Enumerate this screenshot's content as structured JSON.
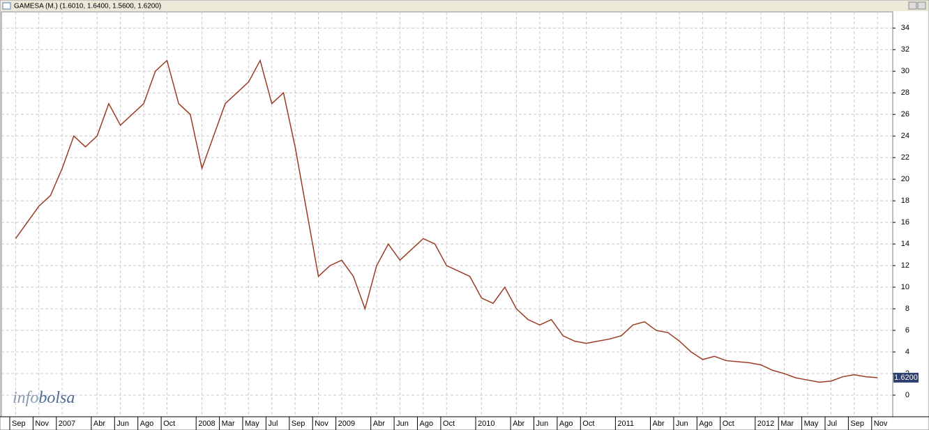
{
  "chart_data": {
    "type": "line",
    "title": "GAMESA (M.) (1.6010, 1.6400, 1.5600, 1.6200)",
    "watermark": [
      "info",
      "bolsa"
    ],
    "last_value_label": "1.6200",
    "categories": [
      "Sep",
      null,
      "Nov",
      null,
      "2007",
      null,
      null,
      "Abr",
      null,
      "Jun",
      null,
      "Ago",
      null,
      "Oct",
      null,
      null,
      "2008",
      null,
      "Mar",
      null,
      "May",
      null,
      "Jul",
      null,
      "Sep",
      null,
      "Nov",
      null,
      "2009",
      null,
      null,
      "Abr",
      null,
      "Jun",
      null,
      "Ago",
      null,
      "Oct",
      null,
      null,
      "2010",
      null,
      null,
      "Abr",
      null,
      "Jun",
      null,
      "Ago",
      null,
      "Oct",
      null,
      null,
      "2011",
      null,
      null,
      "Abr",
      null,
      "Jun",
      null,
      "Ago",
      null,
      "Oct",
      null,
      null,
      "2012",
      null,
      "Mar",
      null,
      "May",
      null,
      "Jul",
      null,
      "Sep",
      null,
      "Nov"
    ],
    "series": [
      {
        "name": "GAMESA",
        "color": "#9a3b24",
        "values": [
          14.5,
          16,
          17.5,
          18.5,
          21,
          24,
          23,
          24,
          27,
          25,
          26,
          27,
          30,
          31,
          27,
          26,
          21,
          24,
          27,
          28,
          29,
          31,
          27,
          28,
          23,
          17,
          11,
          12,
          12.5,
          11,
          8,
          12,
          14,
          12.5,
          13.5,
          14.5,
          14,
          12,
          11.5,
          11,
          9,
          8.5,
          10,
          8,
          7,
          6.5,
          7,
          5.5,
          5,
          4.8,
          5,
          5.2,
          5.5,
          6.5,
          6.8,
          6,
          5.8,
          5,
          4,
          3.3,
          3.6,
          3.2,
          3.1,
          3,
          2.8,
          2.3,
          2,
          1.6,
          1.4,
          1.2,
          1.3,
          1.7,
          1.9,
          1.7,
          1.62
        ]
      }
    ],
    "ylim": [
      -2,
      35.5
    ],
    "yticks": [
      0,
      2,
      4,
      6,
      8,
      10,
      12,
      14,
      16,
      18,
      20,
      22,
      24,
      26,
      28,
      30,
      32,
      34
    ],
    "grid": true
  }
}
